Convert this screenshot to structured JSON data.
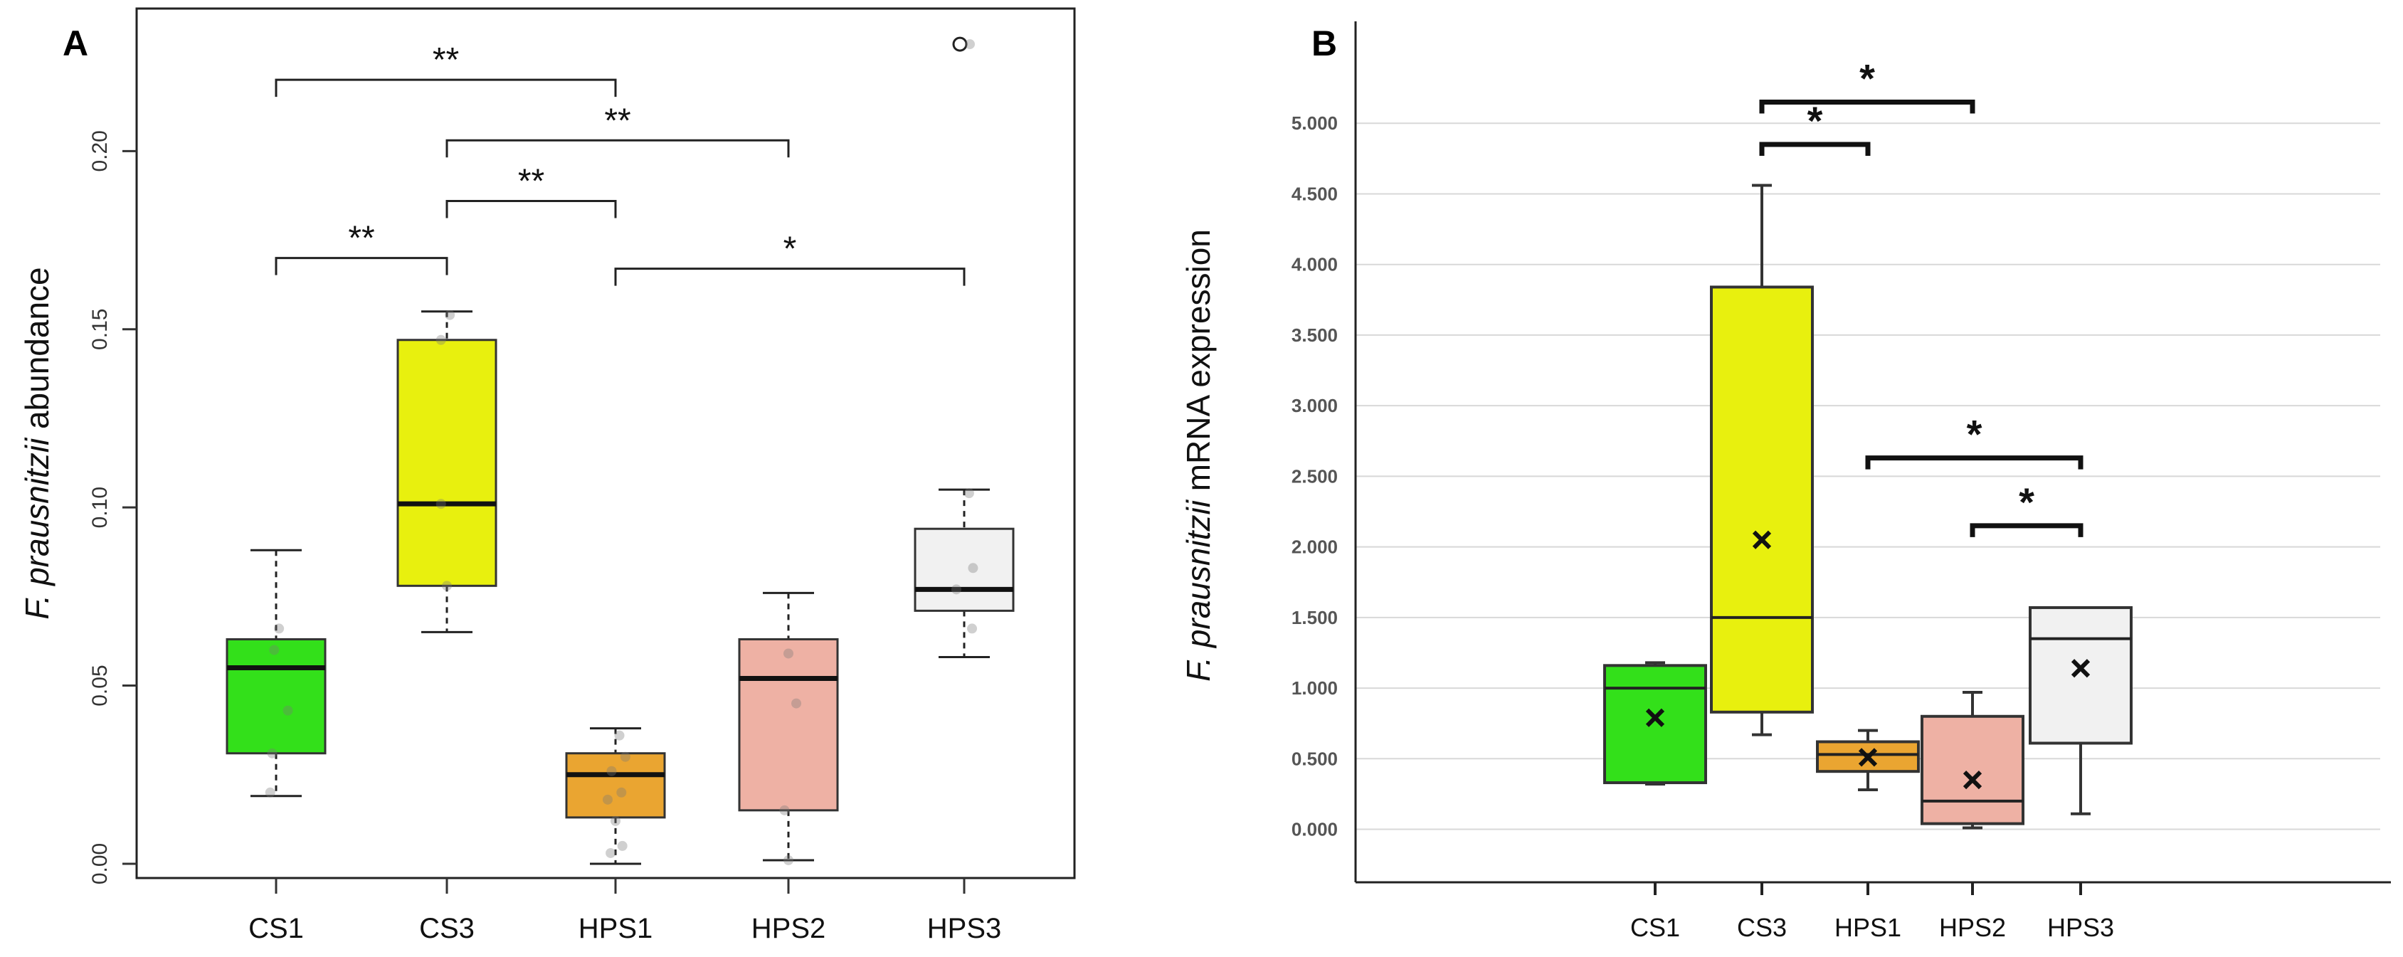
{
  "colors": {
    "CS1": "#33e01a",
    "CS3": "#e8f00e",
    "HPS1": "#eaa531",
    "HPS2": "#eeb1a4",
    "HPS3": "#f1f1f1"
  },
  "chart_data": [
    {
      "panel": "A",
      "type": "box",
      "ylabel_italic": "F. prausnitzii",
      "ylabel_rest": " abundance",
      "categories": [
        "CS1",
        "CS3",
        "HPS1",
        "HPS2",
        "HPS3"
      ],
      "ylim": [
        -0.004,
        0.24
      ],
      "yticks": [
        "0.00",
        "0.05",
        "0.10",
        "0.15",
        "0.20"
      ],
      "ytick_values": [
        0,
        0.05,
        0.1,
        0.15,
        0.2
      ],
      "boxes": [
        {
          "name": "CS1",
          "min": 0.019,
          "q1": 0.031,
          "median": 0.055,
          "q3": 0.063,
          "max": 0.088
        },
        {
          "name": "CS3",
          "min": 0.065,
          "q1": 0.078,
          "median": 0.101,
          "q3": 0.147,
          "max": 0.155
        },
        {
          "name": "HPS1",
          "min": 0.0,
          "q1": 0.013,
          "median": 0.025,
          "q3": 0.031,
          "max": 0.038
        },
        {
          "name": "HPS2",
          "min": 0.001,
          "q1": 0.015,
          "median": 0.052,
          "q3": 0.063,
          "max": 0.076
        },
        {
          "name": "HPS3",
          "min": 0.058,
          "q1": 0.071,
          "median": 0.077,
          "q3": 0.094,
          "max": 0.105
        }
      ],
      "outliers": [
        {
          "category": "HPS3",
          "value": 0.23
        }
      ],
      "jitter_points": [
        {
          "category": "CS1",
          "offset": 0.03,
          "value": 0.066
        },
        {
          "category": "CS1",
          "offset": -0.02,
          "value": 0.06
        },
        {
          "category": "CS1",
          "offset": 0.12,
          "value": 0.043
        },
        {
          "category": "CS1",
          "offset": -0.04,
          "value": 0.031
        },
        {
          "category": "CS1",
          "offset": -0.06,
          "value": 0.02
        },
        {
          "category": "CS3",
          "offset": 0.03,
          "value": 0.154
        },
        {
          "category": "CS3",
          "offset": -0.06,
          "value": 0.147
        },
        {
          "category": "CS3",
          "offset": -0.06,
          "value": 0.101
        },
        {
          "category": "CS3",
          "offset": 0.0,
          "value": 0.078
        },
        {
          "category": "HPS1",
          "offset": 0.04,
          "value": 0.036
        },
        {
          "category": "HPS1",
          "offset": 0.1,
          "value": 0.03
        },
        {
          "category": "HPS1",
          "offset": -0.04,
          "value": 0.026
        },
        {
          "category": "HPS1",
          "offset": 0.06,
          "value": 0.02
        },
        {
          "category": "HPS1",
          "offset": -0.08,
          "value": 0.018
        },
        {
          "category": "HPS1",
          "offset": 0.0,
          "value": 0.012
        },
        {
          "category": "HPS1",
          "offset": 0.07,
          "value": 0.005
        },
        {
          "category": "HPS1",
          "offset": -0.05,
          "value": 0.003
        },
        {
          "category": "HPS2",
          "offset": 0.0,
          "value": 0.059
        },
        {
          "category": "HPS2",
          "offset": 0.08,
          "value": 0.045
        },
        {
          "category": "HPS2",
          "offset": -0.04,
          "value": 0.015
        },
        {
          "category": "HPS2",
          "offset": 0.0,
          "value": 0.001
        },
        {
          "category": "HPS3",
          "offset": 0.05,
          "value": 0.104
        },
        {
          "category": "HPS3",
          "offset": 0.09,
          "value": 0.083
        },
        {
          "category": "HPS3",
          "offset": -0.08,
          "value": 0.077
        },
        {
          "category": "HPS3",
          "offset": 0.08,
          "value": 0.066
        }
      ],
      "significance": [
        {
          "from": "CS1",
          "to": "HPS1",
          "y": 0.22,
          "label": "**"
        },
        {
          "from": "CS3",
          "to": "HPS2",
          "y": 0.203,
          "label": "**"
        },
        {
          "from": "CS3",
          "to": "HPS1",
          "y": 0.186,
          "label": "**"
        },
        {
          "from": "CS1",
          "to": "CS3",
          "y": 0.17,
          "label": "**"
        },
        {
          "from": "HPS1",
          "to": "HPS3",
          "y": 0.167,
          "label": "*"
        }
      ]
    },
    {
      "panel": "B",
      "type": "box",
      "ylabel_italic": "F. prausnitzii",
      "ylabel_rest": " mRNA expression",
      "categories": [
        "CS1",
        "CS3",
        "HPS1",
        "HPS2",
        "HPS3"
      ],
      "ylim": [
        -0.35,
        5.5
      ],
      "yticks": [
        "0.000",
        "0.500",
        "1.000",
        "1.500",
        "2.000",
        "2.500",
        "3.000",
        "3.500",
        "4.000",
        "4.500",
        "5.000"
      ],
      "ytick_values": [
        0,
        0.5,
        1,
        1.5,
        2,
        2.5,
        3,
        3.5,
        4,
        4.5,
        5
      ],
      "boxes": [
        {
          "name": "CS1",
          "min": 0.32,
          "q1": 0.33,
          "median": 1.0,
          "q3": 1.16,
          "max": 1.18,
          "mean": 0.79
        },
        {
          "name": "CS3",
          "min": 0.67,
          "q1": 0.83,
          "median": 1.5,
          "q3": 3.84,
          "max": 4.56,
          "mean": 2.05
        },
        {
          "name": "HPS1",
          "min": 0.28,
          "q1": 0.41,
          "median": 0.53,
          "q3": 0.62,
          "max": 0.7,
          "mean": 0.51
        },
        {
          "name": "HPS2",
          "min": 0.01,
          "q1": 0.04,
          "median": 0.2,
          "q3": 0.8,
          "max": 0.97,
          "mean": 0.35
        },
        {
          "name": "HPS3",
          "min": 0.11,
          "q1": 0.61,
          "median": 1.35,
          "q3": 1.57,
          "max": 1.57,
          "mean": 1.14
        }
      ],
      "significance": [
        {
          "from": "CS3",
          "to": "HPS2",
          "y": 5.15,
          "label": "*"
        },
        {
          "from": "CS3",
          "to": "HPS1",
          "y": 4.85,
          "label": "*"
        },
        {
          "from": "HPS1",
          "to": "HPS3",
          "y": 2.63,
          "label": "*"
        },
        {
          "from": "HPS2",
          "to": "HPS3",
          "y": 2.15,
          "label": "*"
        }
      ]
    }
  ]
}
